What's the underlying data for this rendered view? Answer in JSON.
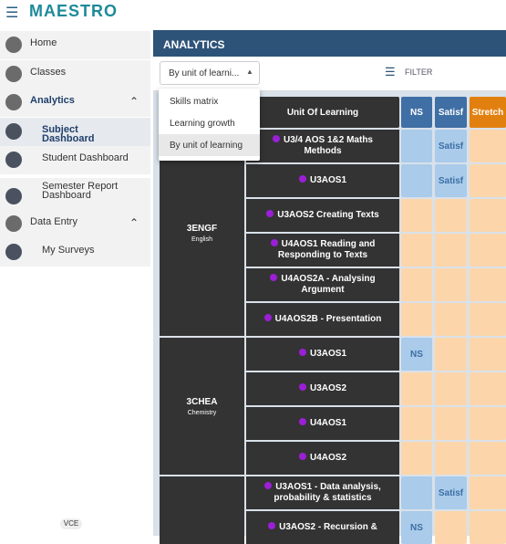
{
  "header": {
    "logo": "MAESTRO"
  },
  "sidebar": {
    "items": [
      {
        "label": "Home",
        "level": 0
      },
      {
        "label": "Classes",
        "level": 0
      },
      {
        "label": "Analytics",
        "level": 0,
        "expanded": true,
        "active": true
      },
      {
        "label": "Subject Dashboard",
        "level": 1,
        "selected": true
      },
      {
        "label": "Student Dashboard",
        "level": 1
      },
      {
        "label": "Semester Report Dashboard",
        "level": 1
      },
      {
        "label": "Data Entry",
        "level": 0,
        "expanded": true
      },
      {
        "label": "My Surveys",
        "level": 1
      }
    ],
    "footer": "VCE"
  },
  "main": {
    "title": "ANALYTICS",
    "dropdown": "By unit of learni...",
    "filter": "FILTER"
  },
  "menu": {
    "options": [
      "Skills matrix",
      "Learning growth",
      "By unit of learning"
    ],
    "selected": 2
  },
  "table": {
    "headers": [
      {
        "text": "Unit Of Learning",
        "color": "#333333"
      },
      {
        "text": "NS",
        "color": "#3f6fa5"
      },
      {
        "text": "Satisf",
        "color": "#3f6fa5"
      },
      {
        "text": "Stretch",
        "color": "#e2800f"
      }
    ],
    "groups": [
      {
        "code": "3ENGF",
        "name": "English",
        "rows": [
          {
            "unit": "U3/4 AOS 1&2 Maths Methods",
            "cells": [
              [
                "#aacbea"
              ],
              [
                "#aacbea",
                "Satisf"
              ],
              [
                "#fcd6aa"
              ]
            ]
          },
          {
            "unit": "U3AOS1",
            "cells": [
              [
                "#aacbea"
              ],
              [
                "#aacbea",
                "Satisf"
              ],
              [
                "#fcd6aa"
              ]
            ]
          },
          {
            "unit": "U3AOS2 Creating Texts",
            "cells": [
              [
                "#fcd6aa"
              ],
              [
                "#fcd6aa"
              ],
              [
                "#fcd6aa"
              ]
            ]
          },
          {
            "unit": "U4AOS1 Reading and Responding to Texts",
            "cells": [
              [
                "#fcd6aa"
              ],
              [
                "#fcd6aa"
              ],
              [
                "#fcd6aa"
              ]
            ]
          },
          {
            "unit": "U4AOS2A - Analysing Argument",
            "cells": [
              [
                "#fcd6aa"
              ],
              [
                "#fcd6aa"
              ],
              [
                "#fcd6aa"
              ]
            ]
          },
          {
            "unit": "U4AOS2B - Presentation",
            "cells": [
              [
                "#fcd6aa"
              ],
              [
                "#fcd6aa"
              ],
              [
                "#fcd6aa"
              ]
            ]
          }
        ]
      },
      {
        "code": "3CHEA",
        "name": "Chemistry",
        "rows": [
          {
            "unit": "U3AOS1",
            "cells": [
              [
                "#aacbea",
                "NS"
              ],
              [
                "#fcd6aa"
              ],
              [
                "#fcd6aa"
              ]
            ]
          },
          {
            "unit": "U3AOS2",
            "cells": [
              [
                "#fcd6aa"
              ],
              [
                "#fcd6aa"
              ],
              [
                "#fcd6aa"
              ]
            ]
          },
          {
            "unit": "U4AOS1",
            "cells": [
              [
                "#fcd6aa"
              ],
              [
                "#fcd6aa"
              ],
              [
                "#fcd6aa"
              ]
            ]
          },
          {
            "unit": "U4AOS2",
            "cells": [
              [
                "#fcd6aa"
              ],
              [
                "#fcd6aa"
              ],
              [
                "#fcd6aa"
              ]
            ]
          }
        ]
      },
      {
        "rows": [
          {
            "unit": "U3AOS1 - Data analysis, probability & statistics",
            "cells": [
              [
                "#aacbea"
              ],
              [
                "#aacbea",
                "Satisf"
              ],
              [
                "#fcd6aa"
              ]
            ]
          },
          {
            "unit": "U3AOS2 - Recursion &",
            "cells": [
              [
                "#aacbea",
                "NS"
              ],
              [
                "#fcd6aa"
              ],
              [
                "#fcd6aa"
              ]
            ]
          }
        ]
      }
    ]
  }
}
